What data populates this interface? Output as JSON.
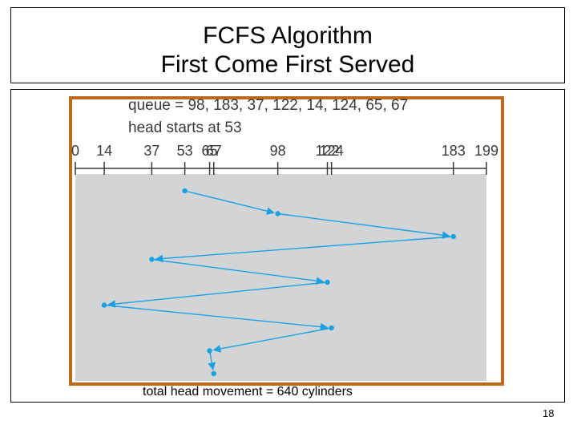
{
  "slide": {
    "title_line1": "FCFS Algorithm",
    "title_line2": "First Come First Served",
    "page_number": "18",
    "caption": "total head movement =  640 cylinders"
  },
  "diagram": {
    "queue_text": "queue = 98, 183, 37, 122, 14, 124, 65, 67",
    "head_text": "head starts at 53",
    "axis_min": 0,
    "axis_max": 199,
    "ticks": [
      0,
      14,
      37,
      53,
      65,
      67,
      98,
      122,
      124,
      183,
      199
    ],
    "tick_labels": [
      "0",
      "14",
      "37",
      "53",
      "65",
      "67",
      "98",
      "122",
      "124",
      "183",
      "199"
    ],
    "sequence": [
      53,
      98,
      183,
      37,
      122,
      14,
      124,
      65,
      67
    ],
    "colors": {
      "frame": "#c0691b",
      "plot_bg": "#d3d4d6",
      "path": "#1ba1e2",
      "axis": "#3a3a3a"
    }
  }
}
